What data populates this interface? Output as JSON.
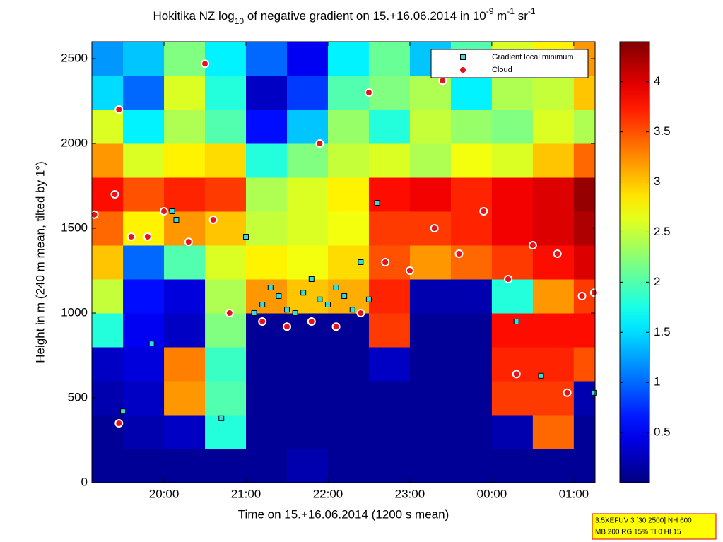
{
  "chart_data": {
    "type": "heatmap",
    "title": [
      "Hokitika NZ log",
      "10",
      " of negative gradient on 15.+16.06.2014 in 10",
      "-9",
      " m",
      "-1",
      " sr",
      "-1"
    ],
    "xlabel": "Time on 15.+16.06.2014 (1200 s mean)",
    "ylabel": "Height in m (240 m mean, tilted by 1°)",
    "xlim": [
      19.12,
      25.26
    ],
    "ylim": [
      0,
      2600
    ],
    "xticks": [
      {
        "value": 20,
        "label": "20:00"
      },
      {
        "value": 21,
        "label": "21:00"
      },
      {
        "value": 22,
        "label": "22:00"
      },
      {
        "value": 23,
        "label": "23:00"
      },
      {
        "value": 24,
        "label": "00:00"
      },
      {
        "value": 25,
        "label": "01:00"
      }
    ],
    "yticks": [
      0,
      500,
      1000,
      1500,
      2000,
      2500
    ],
    "zlim": [
      0,
      4.4
    ],
    "zticks": [
      0.5,
      1,
      1.5,
      2,
      2.5,
      3,
      3.5,
      4
    ],
    "colormap": "jet",
    "xbins": [
      19.12,
      19.5,
      20,
      20.5,
      21,
      21.5,
      22,
      22.5,
      23,
      23.5,
      24,
      24.5,
      25,
      25.26
    ],
    "ybins": [
      0,
      200,
      400,
      600,
      800,
      1000,
      1200,
      1400,
      1600,
      1800,
      2000,
      2200,
      2400,
      2600
    ],
    "z": [
      [
        0.1,
        0.1,
        0.1,
        0.1,
        0.1,
        0.2,
        0.1,
        0.1,
        0.1,
        0.1,
        0.1,
        0.1,
        0.1
      ],
      [
        0.1,
        0.2,
        0.3,
        1.8,
        0.1,
        0.1,
        0.1,
        0.1,
        0.1,
        0.1,
        0.2,
        3.4,
        0.1
      ],
      [
        0.2,
        0.3,
        3.2,
        2.0,
        0.1,
        0.1,
        0.1,
        0.1,
        0.1,
        0.1,
        3.6,
        3.6,
        0.2
      ],
      [
        0.3,
        0.4,
        3.3,
        1.9,
        0.1,
        0.1,
        0.1,
        0.3,
        0.1,
        0.1,
        3.7,
        3.7,
        3.5
      ],
      [
        1.8,
        0.5,
        0.3,
        2.2,
        0.1,
        0.1,
        0.1,
        3.6,
        0.1,
        0.1,
        3.8,
        3.8,
        3.8
      ],
      [
        2.5,
        0.6,
        0.4,
        2.4,
        3.2,
        3.0,
        3.1,
        3.7,
        0.2,
        0.2,
        1.8,
        3.2,
        3.6
      ],
      [
        3.0,
        1.0,
        2.0,
        2.6,
        2.8,
        2.7,
        2.9,
        3.5,
        3.2,
        3.4,
        3.6,
        3.8,
        4.0
      ],
      [
        3.4,
        2.8,
        3.2,
        3.0,
        2.5,
        2.6,
        2.7,
        3.6,
        3.6,
        3.7,
        3.9,
        4.0,
        4.2
      ],
      [
        3.8,
        3.5,
        3.7,
        3.6,
        2.4,
        2.6,
        2.8,
        3.8,
        3.9,
        3.7,
        3.9,
        4.0,
        4.3
      ],
      [
        3.2,
        2.6,
        2.8,
        2.9,
        1.8,
        2.2,
        2.5,
        2.6,
        2.4,
        2.7,
        2.6,
        3.0,
        3.4
      ],
      [
        2.6,
        1.6,
        2.4,
        2.0,
        0.6,
        1.4,
        2.3,
        1.8,
        2.5,
        2.3,
        2.2,
        2.6,
        2.4
      ],
      [
        1.5,
        1.0,
        2.6,
        1.8,
        0.3,
        0.8,
        2.0,
        2.2,
        2.4,
        1.6,
        2.4,
        2.5,
        3.0
      ],
      [
        1.2,
        1.4,
        2.2,
        1.6,
        1.0,
        0.5,
        1.6,
        2.1,
        1.4,
        2.0,
        2.6,
        2.8,
        3.2
      ]
    ],
    "series": [
      {
        "name": "Gradient local minimum",
        "color": "#33dddd",
        "marker": "square",
        "x": [
          19.5,
          19.85,
          20.1,
          20.15,
          20.7,
          21.0,
          21.1,
          21.2,
          21.3,
          21.4,
          21.5,
          21.6,
          21.7,
          21.8,
          21.9,
          22.0,
          22.1,
          22.2,
          22.3,
          22.4,
          22.5,
          22.6,
          24.3,
          24.6,
          25.25
        ],
        "y": [
          420,
          820,
          1600,
          1550,
          380,
          1450,
          1000,
          1050,
          1150,
          1100,
          1020,
          1000,
          1120,
          1200,
          1080,
          1050,
          1150,
          1100,
          1020,
          1300,
          1080,
          1650,
          950,
          630,
          530
        ]
      },
      {
        "name": "Cloud",
        "color": "#e8111a",
        "marker": "circle",
        "x": [
          19.15,
          19.4,
          19.45,
          19.6,
          19.8,
          20.0,
          20.3,
          20.5,
          20.6,
          20.8,
          21.2,
          21.5,
          21.8,
          21.9,
          22.1,
          22.4,
          22.5,
          22.7,
          23.0,
          23.3,
          23.4,
          23.6,
          23.9,
          24.2,
          24.3,
          24.5,
          24.8,
          24.92,
          25.1,
          25.25,
          19.45
        ],
        "y": [
          1580,
          1700,
          2200,
          1450,
          1450,
          1600,
          1420,
          2470,
          1550,
          1000,
          950,
          920,
          950,
          2000,
          920,
          1000,
          2300,
          1300,
          1250,
          1500,
          2370,
          1350,
          1600,
          1200,
          640,
          1400,
          1350,
          530,
          1100,
          1120,
          350
        ]
      }
    ],
    "legend": "upper right",
    "annotation": [
      "3.5XEFUV 3 [30 2500] NH 600",
      "MB 200 RG 15% TI 0 HI 15"
    ]
  }
}
